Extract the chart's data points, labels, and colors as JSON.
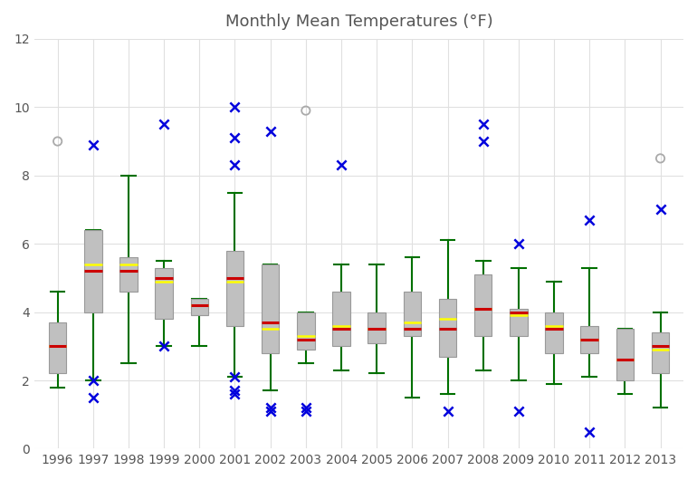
{
  "title": "Monthly Mean Temperatures (°F)",
  "years": [
    1996,
    1997,
    1998,
    1999,
    2000,
    2001,
    2002,
    2003,
    2004,
    2005,
    2006,
    2007,
    2008,
    2009,
    2010,
    2011,
    2012,
    2013
  ],
  "boxes": {
    "1996": {
      "q1": 2.2,
      "median": 3.0,
      "mean": 3.0,
      "q3": 3.7,
      "whislo": 1.8,
      "whishi": 4.6
    },
    "1997": {
      "q1": 4.0,
      "median": 5.2,
      "mean": 5.4,
      "q3": 6.4,
      "whislo": 2.0,
      "whishi": 6.4
    },
    "1998": {
      "q1": 4.6,
      "median": 5.2,
      "mean": 5.4,
      "q3": 5.6,
      "whislo": 2.5,
      "whishi": 8.0
    },
    "1999": {
      "q1": 3.8,
      "median": 5.0,
      "mean": 4.9,
      "q3": 5.3,
      "whislo": 3.0,
      "whishi": 5.5
    },
    "2000": {
      "q1": 3.9,
      "median": 4.2,
      "mean": 4.2,
      "q3": 4.4,
      "whislo": 3.0,
      "whishi": 4.4
    },
    "2001": {
      "q1": 3.6,
      "median": 5.0,
      "mean": 4.9,
      "q3": 5.8,
      "whislo": 2.1,
      "whishi": 7.5
    },
    "2002": {
      "q1": 2.8,
      "median": 3.7,
      "mean": 3.5,
      "q3": 5.4,
      "whislo": 1.7,
      "whishi": 5.4
    },
    "2003": {
      "q1": 2.9,
      "median": 3.2,
      "mean": 3.3,
      "q3": 4.0,
      "whislo": 2.5,
      "whishi": 4.0
    },
    "2004": {
      "q1": 3.0,
      "median": 3.5,
      "mean": 3.6,
      "q3": 4.6,
      "whislo": 2.3,
      "whishi": 5.4
    },
    "2005": {
      "q1": 3.1,
      "median": 3.5,
      "mean": 3.5,
      "q3": 4.0,
      "whislo": 2.2,
      "whishi": 5.4
    },
    "2006": {
      "q1": 3.3,
      "median": 3.5,
      "mean": 3.7,
      "q3": 4.6,
      "whislo": 1.5,
      "whishi": 5.6
    },
    "2007": {
      "q1": 2.7,
      "median": 3.5,
      "mean": 3.8,
      "q3": 4.4,
      "whislo": 1.6,
      "whishi": 6.1
    },
    "2008": {
      "q1": 3.3,
      "median": 4.1,
      "mean": 4.1,
      "q3": 5.1,
      "whislo": 2.3,
      "whishi": 5.5
    },
    "2009": {
      "q1": 3.3,
      "median": 4.0,
      "mean": 3.9,
      "q3": 4.1,
      "whislo": 2.0,
      "whishi": 5.3
    },
    "2010": {
      "q1": 2.8,
      "median": 3.5,
      "mean": 3.6,
      "q3": 4.0,
      "whislo": 1.9,
      "whishi": 4.9
    },
    "2011": {
      "q1": 2.8,
      "median": 3.2,
      "mean": 3.2,
      "q3": 3.6,
      "whislo": 2.1,
      "whishi": 5.3
    },
    "2012": {
      "q1": 2.0,
      "median": 2.6,
      "mean": 2.6,
      "q3": 3.5,
      "whislo": 1.6,
      "whishi": 3.5
    },
    "2013": {
      "q1": 2.2,
      "median": 3.0,
      "mean": 2.9,
      "q3": 3.4,
      "whislo": 1.2,
      "whishi": 4.0
    }
  },
  "outliers": {
    "1996": [
      {
        "val": 9.0,
        "type": "circle"
      }
    ],
    "1997": [
      {
        "val": 8.9,
        "type": "cross"
      },
      {
        "val": 2.0,
        "type": "cross"
      },
      {
        "val": 1.5,
        "type": "cross"
      }
    ],
    "1998": [],
    "1999": [
      {
        "val": 9.5,
        "type": "cross"
      },
      {
        "val": 3.0,
        "type": "cross"
      }
    ],
    "2000": [],
    "2001": [
      {
        "val": 10.0,
        "type": "cross"
      },
      {
        "val": 9.1,
        "type": "cross"
      },
      {
        "val": 8.3,
        "type": "cross"
      },
      {
        "val": 2.1,
        "type": "cross"
      },
      {
        "val": 1.6,
        "type": "cross"
      },
      {
        "val": 1.7,
        "type": "cross"
      }
    ],
    "2002": [
      {
        "val": 9.3,
        "type": "cross"
      },
      {
        "val": 1.1,
        "type": "cross"
      },
      {
        "val": 1.2,
        "type": "cross"
      }
    ],
    "2003": [
      {
        "val": 9.9,
        "type": "circle"
      },
      {
        "val": 1.1,
        "type": "cross"
      },
      {
        "val": 1.2,
        "type": "cross"
      }
    ],
    "2004": [
      {
        "val": 8.3,
        "type": "cross"
      }
    ],
    "2005": [],
    "2006": [],
    "2007": [
      {
        "val": 1.1,
        "type": "cross"
      }
    ],
    "2008": [
      {
        "val": 9.5,
        "type": "cross"
      },
      {
        "val": 9.0,
        "type": "cross"
      }
    ],
    "2009": [
      {
        "val": 6.0,
        "type": "cross"
      },
      {
        "val": 1.1,
        "type": "cross"
      }
    ],
    "2010": [],
    "2011": [
      {
        "val": 6.7,
        "type": "cross"
      },
      {
        "val": 0.5,
        "type": "cross"
      }
    ],
    "2012": [],
    "2013": [
      {
        "val": 8.5,
        "type": "circle"
      },
      {
        "val": 7.0,
        "type": "cross"
      }
    ]
  },
  "box_facecolor": "#c0c0c0",
  "box_edgecolor": "#999999",
  "median_color": "#cc0000",
  "mean_color": "#ffff00",
  "whisker_color": "#007000",
  "cap_color": "#007000",
  "flier_cross_color": "#0000dd",
  "flier_circle_color": "#aaaaaa",
  "background_color": "#ffffff",
  "grid_color": "#e0e0e0",
  "ylim": [
    0,
    12
  ],
  "yticks": [
    0,
    2,
    4,
    6,
    8,
    10,
    12
  ],
  "title_fontsize": 13,
  "title_color": "#555555",
  "tick_fontsize": 10,
  "tick_color": "#555555",
  "box_width": 0.5,
  "cap_ratio": 0.4
}
